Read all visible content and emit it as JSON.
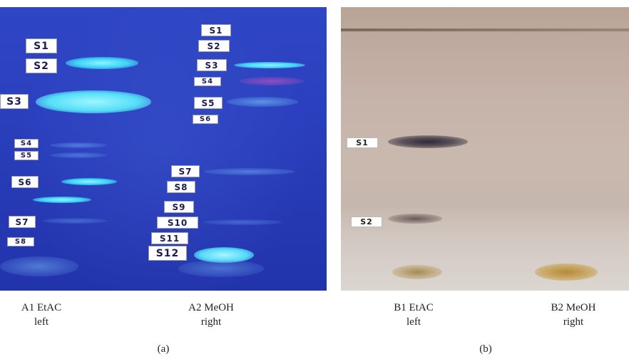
{
  "panel_a": {
    "lane1_labels": [
      "S1",
      "S2",
      "S3",
      "S4",
      "S5",
      "S6",
      "S7",
      "S8"
    ],
    "lane2_labels": [
      "S1",
      "S2",
      "S3",
      "S4",
      "S5",
      "S6",
      "S7",
      "S8",
      "S9",
      "S10",
      "S11",
      "S12"
    ],
    "colors": {
      "plate": "#2a3fbd",
      "spot": "#5fe0ff"
    }
  },
  "panel_b": {
    "labels": [
      "S1",
      "S2"
    ],
    "colors": {
      "plate": "#c9b8ae",
      "spot_dark": "#3a3340",
      "spot_gold": "#b99a55"
    }
  },
  "captions": [
    {
      "line1": "A1 EtAC",
      "line2": "left"
    },
    {
      "line1": "A2 MeOH",
      "line2": "right"
    },
    {
      "line1": "B1 EtAC",
      "line2": "left"
    },
    {
      "line1": "B2 MeOH",
      "line2": "right"
    }
  ],
  "subfigures": {
    "a": "(a)",
    "b": "(b)"
  }
}
